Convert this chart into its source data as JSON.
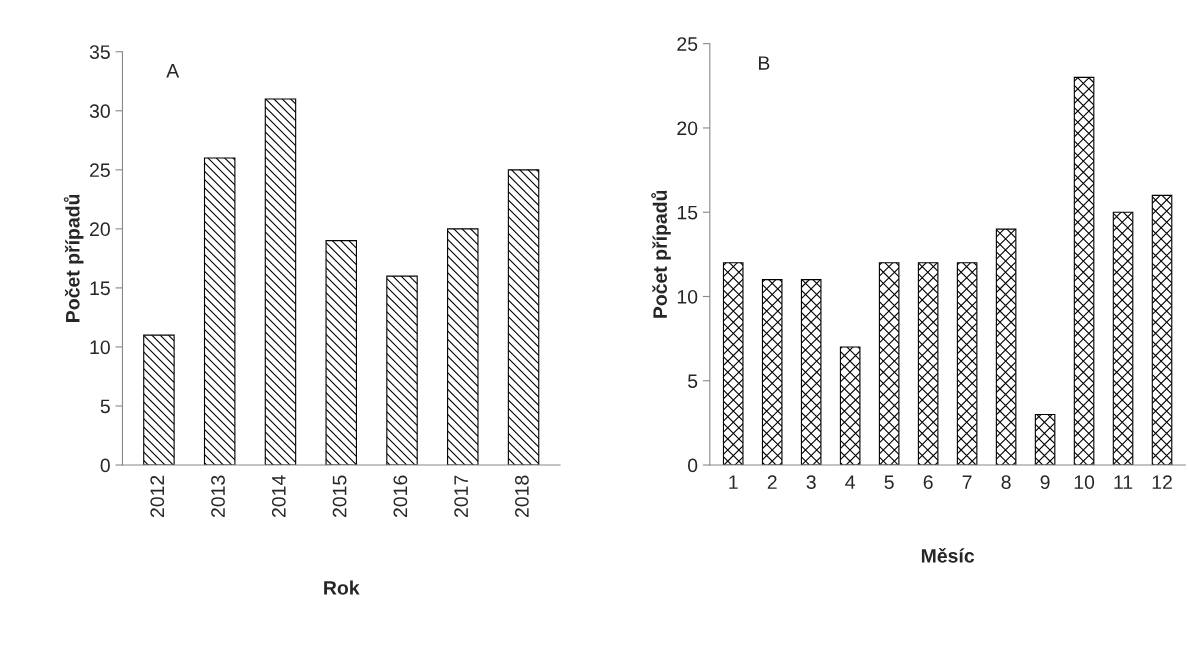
{
  "chart_data": [
    {
      "type": "bar",
      "categories": [
        "2012",
        "2013",
        "2014",
        "2015",
        "2016",
        "2017",
        "2018"
      ],
      "values": [
        11,
        26,
        31,
        19,
        16,
        20,
        25
      ],
      "color": "#000000",
      "xlabel": "Rok",
      "ylabel": "Počet případů",
      "ylim": [
        0,
        35
      ],
      "yticks": [
        0,
        5,
        10,
        15,
        20,
        25,
        30,
        35
      ],
      "grid": false,
      "annotations": [
        "A"
      ]
    },
    {
      "type": "bar",
      "categories": [
        "1",
        "2",
        "3",
        "4",
        "5",
        "6",
        "7",
        "8",
        "9",
        "10",
        "11",
        "12"
      ],
      "values": [
        12,
        11,
        11,
        7,
        12,
        12,
        12,
        14,
        3,
        23,
        15,
        16
      ],
      "color": "#000000",
      "xlabel": "Měsíc",
      "ylabel": "Počet případů",
      "ylim": [
        0,
        25
      ],
      "yticks": [
        0,
        5,
        10,
        15,
        20,
        25
      ],
      "grid": false,
      "annotations": [
        "B"
      ]
    }
  ]
}
